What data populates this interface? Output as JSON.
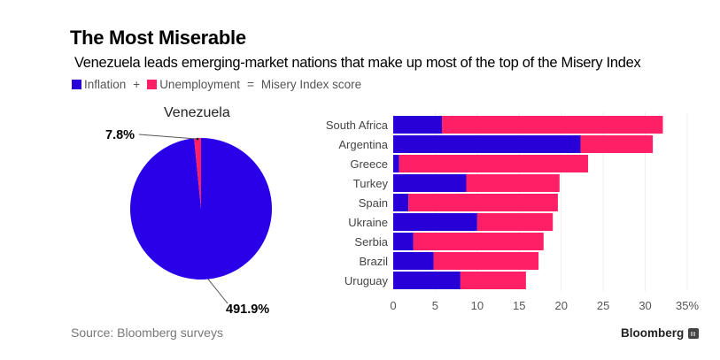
{
  "header": {
    "title": "The Most Miserable",
    "subtitle": "Venezuela leads emerging-market nations that make up most of the top of the Misery Index"
  },
  "legend": {
    "items": [
      {
        "label": "Inflation",
        "color": "#2800d7"
      },
      {
        "label": "Unemployment",
        "color": "#ff1f66"
      }
    ],
    "plus": "+",
    "equals": "=",
    "result_label": "Misery Index score"
  },
  "footer": {
    "source": "Source: Bloomberg surveys",
    "brand": "Bloomberg"
  },
  "chart_data": [
    {
      "type": "pie",
      "title": "Venezuela",
      "slices": [
        {
          "name": "Inflation",
          "value": 491.9,
          "label": "491.9%",
          "color": "#2a00e8"
        },
        {
          "name": "Unemployment",
          "value": 7.8,
          "label": "7.8%",
          "color": "#ff1f66"
        }
      ]
    },
    {
      "type": "bar",
      "orientation": "horizontal",
      "stacked": true,
      "categories": [
        "South Africa",
        "Argentina",
        "Greece",
        "Turkey",
        "Spain",
        "Ukraine",
        "Serbia",
        "Brazil",
        "Uruguay"
      ],
      "series": [
        {
          "name": "Inflation",
          "color": "#2800d7",
          "values": [
            5.8,
            22.3,
            0.7,
            8.7,
            1.8,
            10.0,
            2.4,
            4.8,
            8.0
          ]
        },
        {
          "name": "Unemployment",
          "color": "#ff1f66",
          "values": [
            26.3,
            8.6,
            22.5,
            11.1,
            17.8,
            9.0,
            15.5,
            12.5,
            7.8
          ]
        }
      ],
      "xlim": [
        0,
        35
      ],
      "xticks": [
        0,
        5,
        10,
        15,
        20,
        25,
        30,
        35
      ],
      "xtick_labels": [
        "0",
        "5",
        "10",
        "15",
        "20",
        "25",
        "30",
        "35%"
      ],
      "grid": true,
      "xlabel": "",
      "ylabel": ""
    }
  ]
}
